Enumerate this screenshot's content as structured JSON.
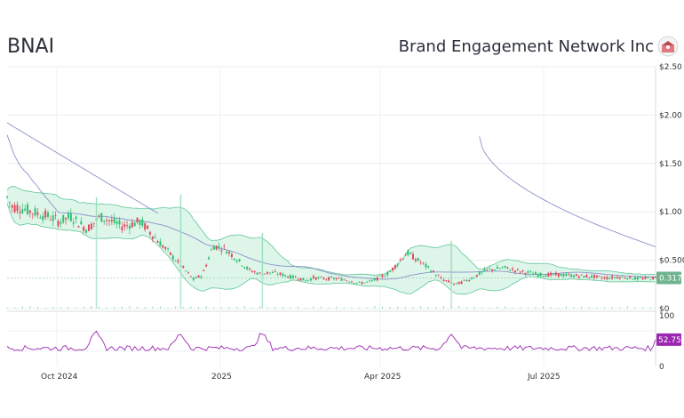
{
  "header": {
    "ticker": "BNAI",
    "company": "Brand Engagement Network Inc",
    "logo_icon": "brand-logo-icon"
  },
  "chart_data": {
    "type": "candlestick",
    "price_ticks": [
      "$0",
      "$0.500",
      "$1.00",
      "$1.50",
      "$2.00",
      "$2.50"
    ],
    "price_tick_values": [
      0,
      0.5,
      1.0,
      1.5,
      2.0,
      2.5
    ],
    "ylim": [
      0,
      2.5
    ],
    "rsi_ticks": [
      "0",
      "100"
    ],
    "x_labels": [
      "Oct 2024",
      "2025",
      "Apr 2025",
      "Jul 2025"
    ],
    "last_price": "0.317",
    "last_price_value": 0.317,
    "last_rsi": "52.75",
    "last_rsi_value": 52.75,
    "anchors": {
      "days": [
        0,
        6,
        12,
        22,
        35,
        48,
        58,
        72,
        90,
        105,
        118,
        130,
        150,
        158,
        165,
        172,
        180,
        190,
        200,
        210,
        220,
        232,
        245,
        260,
        272,
        285,
        292,
        300,
        310,
        318,
        327,
        333,
        336,
        340,
        345,
        355,
        370,
        380,
        390,
        395,
        410,
        430,
        450,
        470,
        490,
        505,
        520,
        540,
        560,
        580,
        600,
        620,
        640,
        660,
        670,
        680,
        690,
        700,
        710,
        730
      ],
      "price": [
        1.15,
        1.05,
        1.05,
        1.02,
        0.98,
        0.95,
        0.9,
        0.95,
        0.82,
        0.95,
        0.9,
        0.85,
        0.9,
        0.82,
        0.75,
        0.68,
        0.6,
        0.5,
        0.4,
        0.3,
        0.35,
        0.65,
        0.62,
        0.5,
        0.4,
        0.36,
        0.37,
        0.37,
        0.35,
        0.33,
        0.32,
        0.3,
        0.29,
        0.3,
        0.32,
        0.31,
        0.31,
        0.3,
        0.28,
        0.26,
        0.28,
        0.37,
        0.58,
        0.45,
        0.3,
        0.25,
        0.3,
        0.4,
        0.42,
        0.38,
        0.35,
        0.35,
        0.34,
        0.33,
        0.32,
        0.32,
        0.33,
        0.32,
        0.31,
        0.317
      ]
    },
    "spikes": [
      {
        "day": 100,
        "high": 1.15,
        "low": 0.9
      },
      {
        "day": 195,
        "high": 1.18,
        "low": 0.95
      },
      {
        "day": 287,
        "high": 0.78,
        "low": 0.4
      },
      {
        "day": 500,
        "high": 0.7,
        "low": 0.3
      }
    ]
  }
}
